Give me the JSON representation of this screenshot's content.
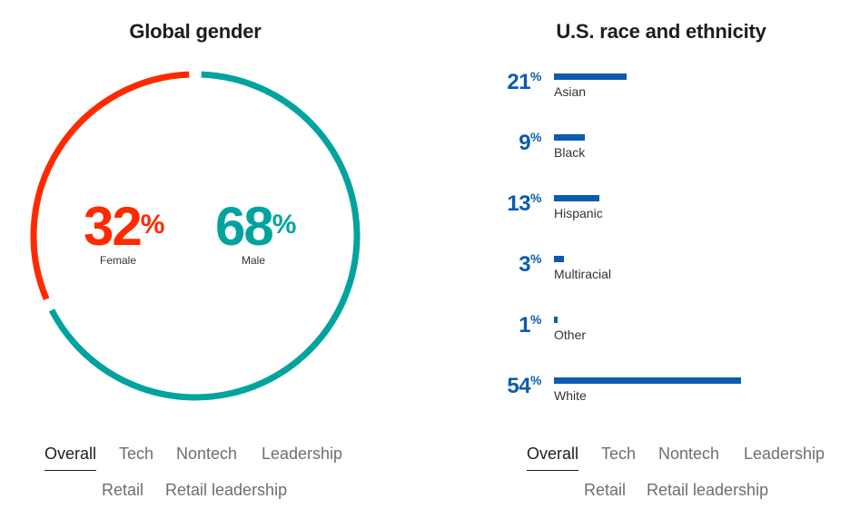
{
  "gender": {
    "title": "Global gender",
    "female": {
      "value": "32",
      "unit": "%",
      "label": "Female",
      "color": "#ff2a00"
    },
    "male": {
      "value": "68",
      "unit": "%",
      "label": "Male",
      "color": "#00a39e"
    },
    "tabs": [
      "Overall",
      "Tech",
      "Nontech",
      "Leadership",
      "Retail",
      "Retail leadership"
    ],
    "active_tab": "Overall"
  },
  "race": {
    "title": "U.S. race and ethnicity",
    "bar_color": "#0b5cad",
    "tabs": [
      "Overall",
      "Tech",
      "Nontech",
      "Leadership",
      "Retail",
      "Retail leadership"
    ],
    "active_tab": "Overall"
  },
  "chart_data": [
    {
      "type": "pie",
      "title": "Global gender",
      "categories": [
        "Female",
        "Male"
      ],
      "values": [
        32,
        68
      ],
      "unit": "%"
    },
    {
      "type": "bar",
      "title": "U.S. race and ethnicity",
      "categories": [
        "Asian",
        "Black",
        "Hispanic",
        "Multiracial",
        "Other",
        "White"
      ],
      "values": [
        21,
        9,
        13,
        3,
        1,
        54
      ],
      "unit": "%",
      "orientation": "horizontal"
    }
  ]
}
